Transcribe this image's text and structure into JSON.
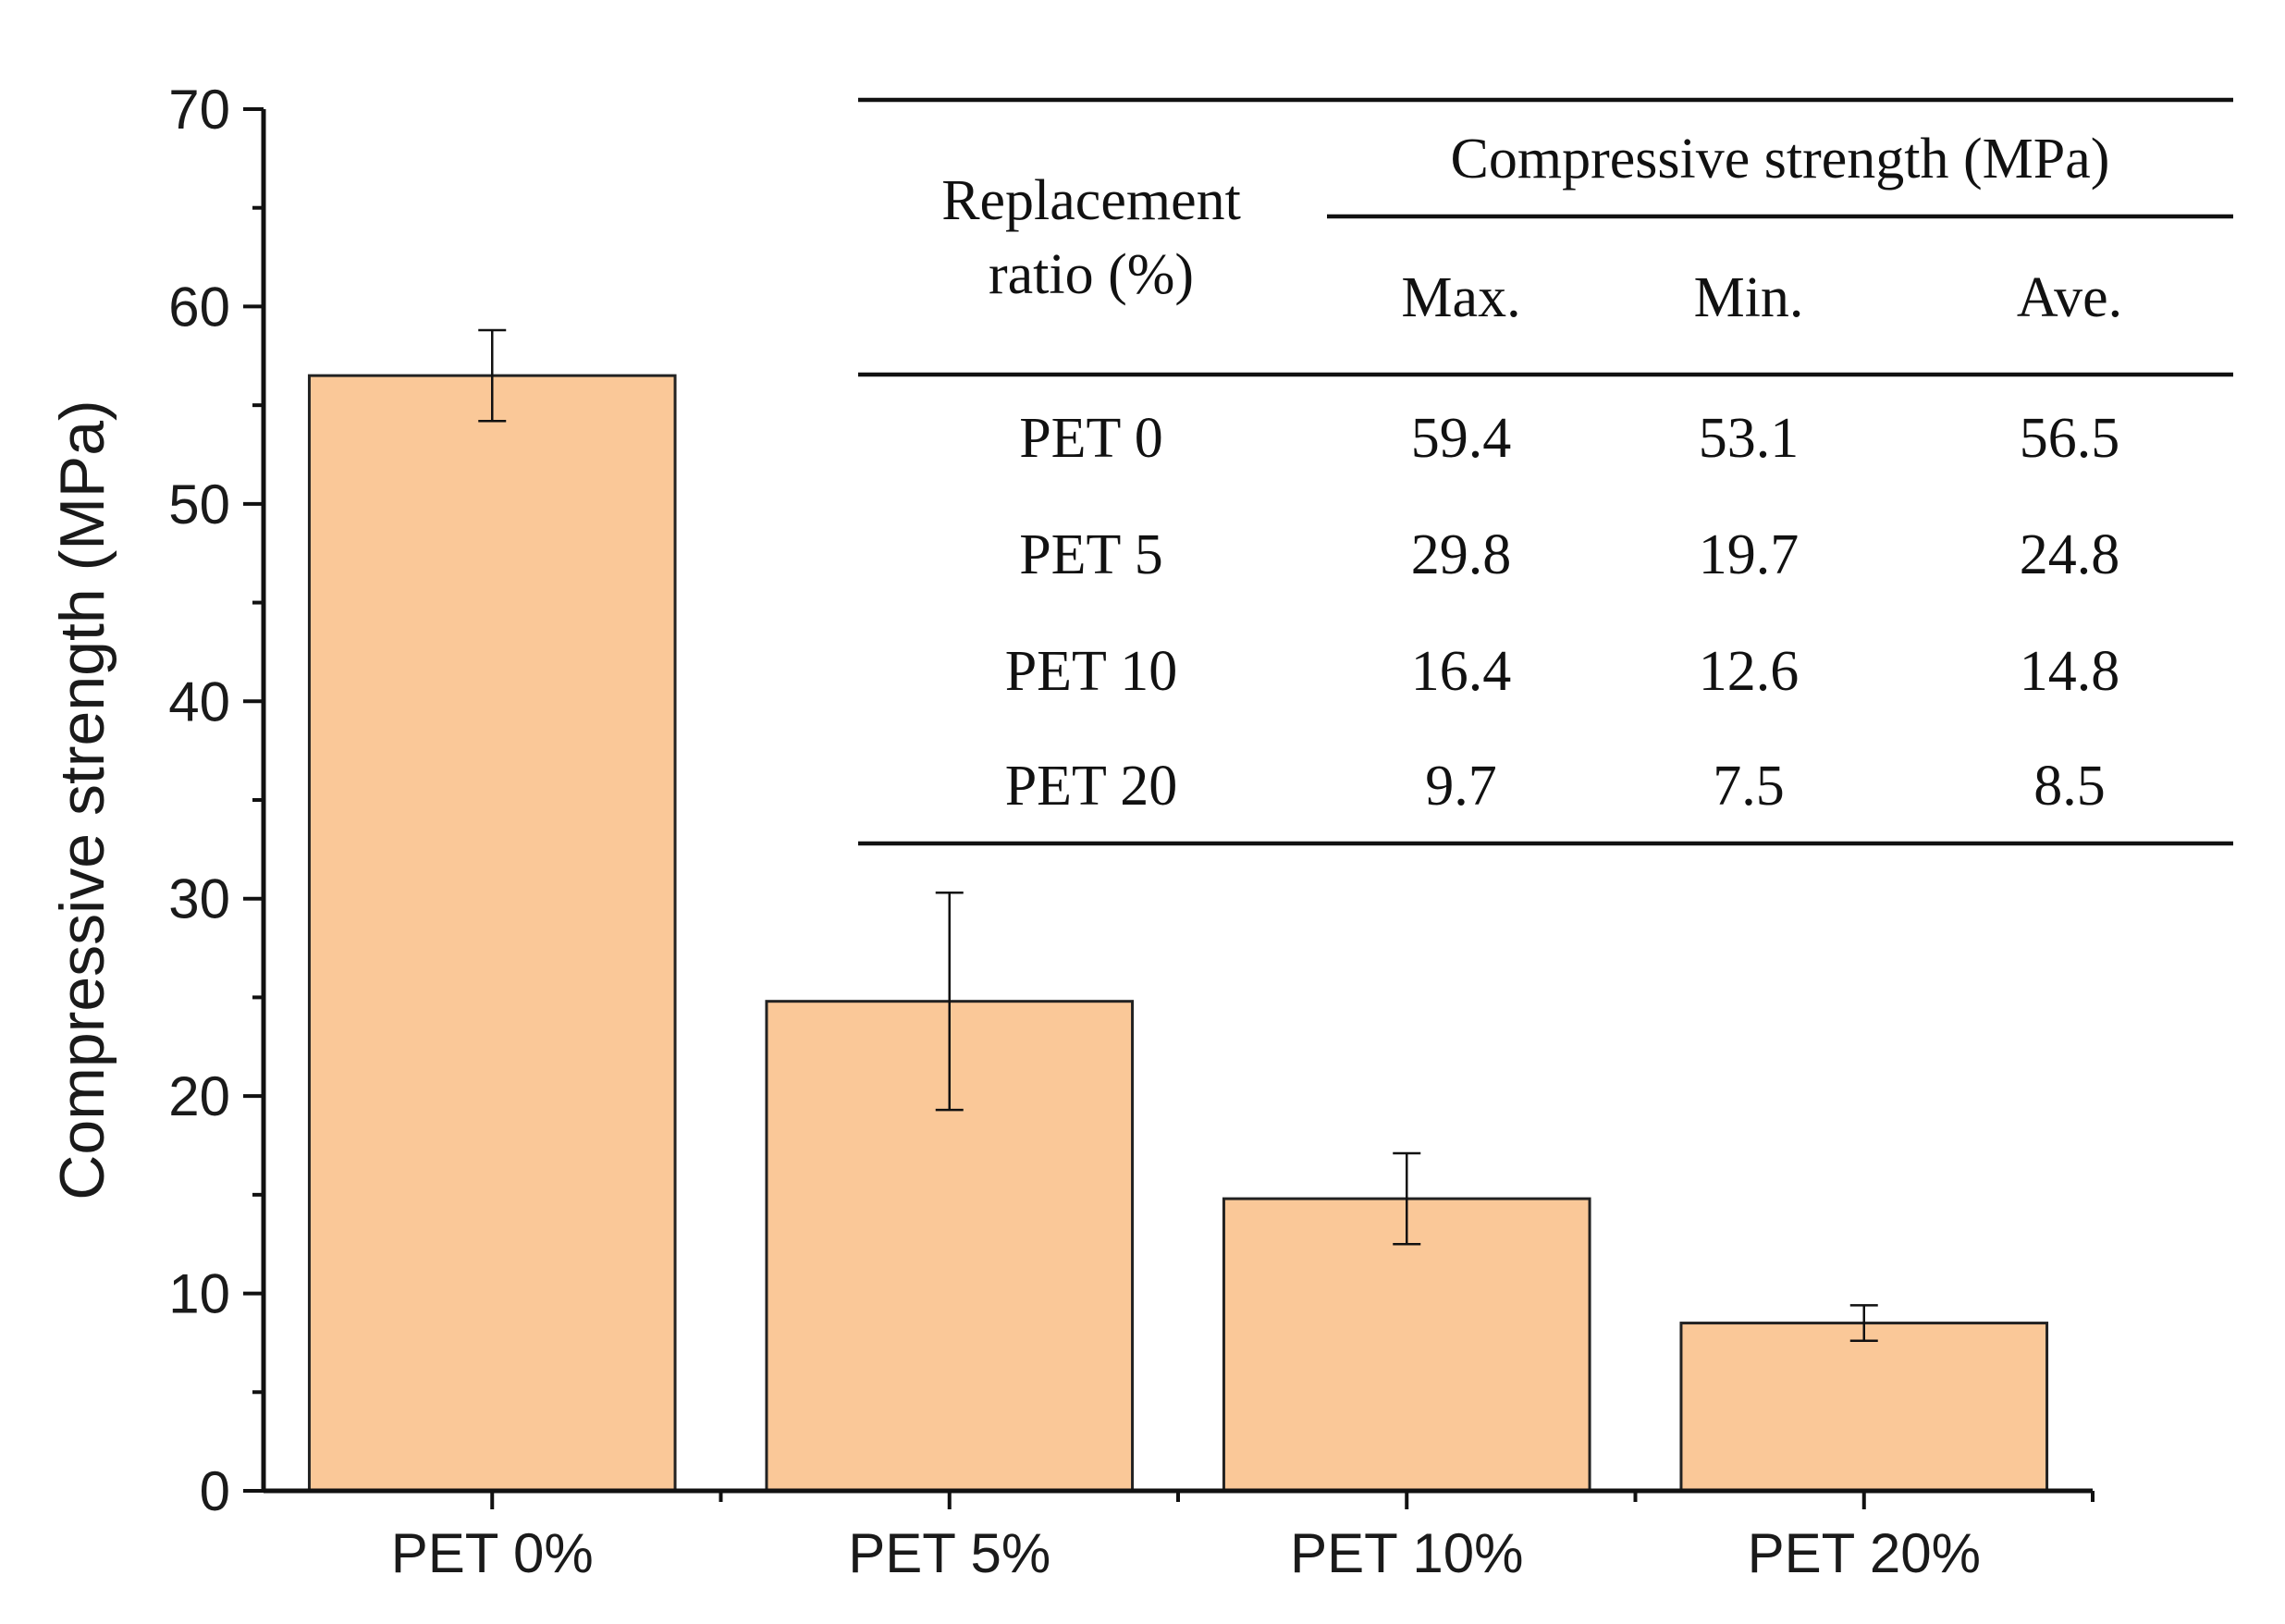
{
  "chart_data": {
    "type": "bar",
    "title": "",
    "xlabel": "",
    "ylabel": "Compressive strength (MPa)",
    "ylim": [
      0,
      70
    ],
    "yticks": [
      0,
      10,
      20,
      30,
      40,
      50,
      60,
      70
    ],
    "categories": [
      "PET 0%",
      "PET 5%",
      "PET 10%",
      "PET 20%"
    ],
    "values": [
      56.5,
      24.8,
      14.8,
      8.5
    ],
    "error_low": [
      54.2,
      19.3,
      12.5,
      7.6
    ],
    "error_high": [
      58.8,
      30.3,
      17.1,
      9.4
    ],
    "bar_color": "#FAC898",
    "bar_edge_color": "#222222",
    "grid": false
  },
  "inset_table": {
    "group_header": "Compressive strength (MPa)",
    "row_header_line1": "Replacement",
    "row_header_line2": "ratio (%)",
    "columns": [
      "Max.",
      "Min.",
      "Ave."
    ],
    "rows": [
      {
        "label": "PET 0",
        "values": [
          "59.4",
          "53.1",
          "56.5"
        ]
      },
      {
        "label": "PET 5",
        "values": [
          "29.8",
          "19.7",
          "24.8"
        ]
      },
      {
        "label": "PET 10",
        "values": [
          "16.4",
          "12.6",
          "14.8"
        ]
      },
      {
        "label": "PET 20",
        "values": [
          "9.7",
          "7.5",
          "8.5"
        ]
      }
    ]
  }
}
